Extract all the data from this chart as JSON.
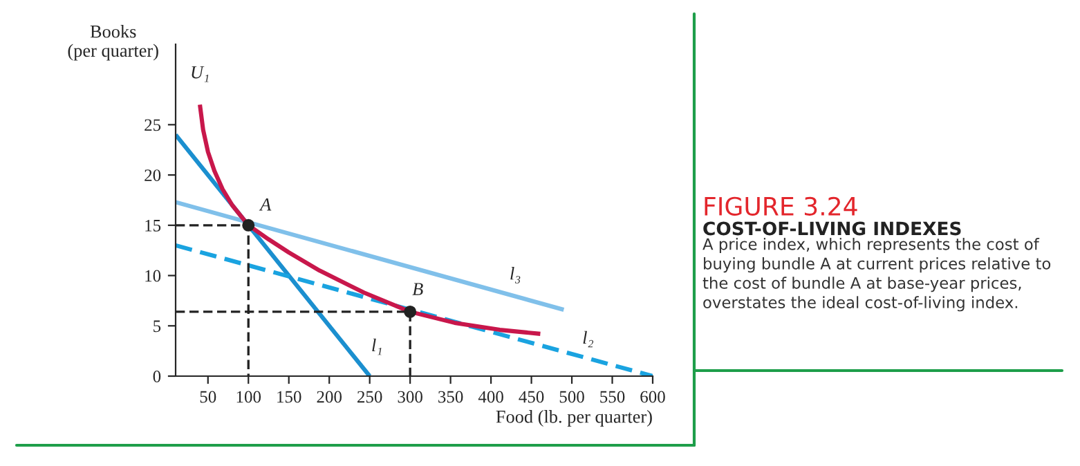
{
  "chart_data": {
    "type": "line",
    "title": "FIGURE 3.24",
    "subtitle": "COST-OF-LIVING INDEXES",
    "xlabel": "Food (lb. per quarter)",
    "ylabel": "Books\n(per quarter)",
    "xlim": [
      10,
      600
    ],
    "ylim": [
      0,
      33
    ],
    "xticks": [
      50,
      100,
      150,
      200,
      250,
      300,
      350,
      400,
      450,
      500,
      550,
      600
    ],
    "yticks": [
      0,
      5,
      10,
      15,
      20,
      25
    ],
    "grid": false,
    "legend": false,
    "series": [
      {
        "color": "#1b8fcf",
        "line_style": "solid",
        "x": [
          10,
          250
        ],
        "values": [
          24,
          0
        ]
      },
      {
        "color": "#80c0ea",
        "line_style": "solid",
        "x": [
          10,
          490
        ],
        "values": [
          17.3,
          6.6
        ]
      },
      {
        "color": "#1aa3e0",
        "line_style": "dashed",
        "x": [
          10,
          600
        ],
        "values": [
          13,
          0
        ]
      },
      {
        "color": "#c8174b",
        "line_style": "solid",
        "x": [
          40,
          44,
          50,
          58,
          68,
          80,
          100,
          125,
          150,
          188,
          243,
          300,
          355,
          411,
          461
        ],
        "values": [
          27,
          24.5,
          22.3,
          20.4,
          18.6,
          17,
          15,
          13.6,
          12.3,
          10.5,
          8.3,
          6.4,
          5.3,
          4.6,
          4.2
        ]
      },
      {
        "color": "#222222",
        "line_style": "dashed",
        "x": [
          10,
          100,
          100
        ],
        "values": [
          15,
          15,
          0
        ]
      },
      {
        "color": "#222222",
        "line_style": "dashed",
        "x": [
          10,
          300,
          300
        ],
        "values": [
          6.4,
          6.4,
          0
        ]
      },
      {
        "type": "scatter",
        "color": "#222222",
        "marker": "circle",
        "x": [
          100,
          300
        ],
        "values": [
          15,
          6.4
        ]
      }
    ],
    "annotations": [
      {
        "text": "U₁",
        "x": 40,
        "y": 27
      },
      {
        "text": "A",
        "x": 100,
        "y": 15
      },
      {
        "text": "B",
        "x": 300,
        "y": 6.4
      },
      {
        "text": "l₁",
        "x": 240,
        "y": 1
      },
      {
        "text": "l₂",
        "x": 520,
        "y": 1.76
      },
      {
        "text": "l₃",
        "x": 430,
        "y": 7.94
      },
      "A price index, which represents the cost of buying bundle A at current prices relative to the cost of bundle A at base-year prices, overstates the ideal cost-of-living index."
    ]
  }
}
